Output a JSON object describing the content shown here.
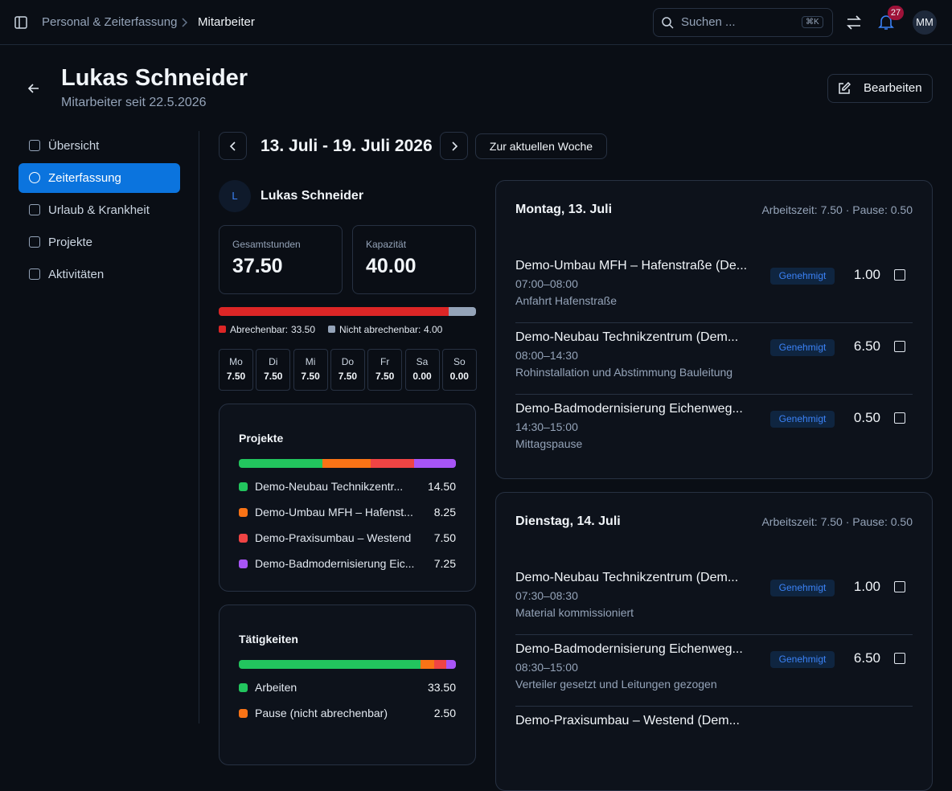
{
  "topbar": {
    "breadcrumb": [
      "Personal & Zeiterfassung",
      "Mitarbeiter"
    ],
    "search": "Suchen ...",
    "shortcut": "⌘K",
    "notifications": "27",
    "avatar": "MM"
  },
  "header": {
    "name": "Lukas Schneider",
    "subtitle": "Mitarbeiter seit 22.5.2026",
    "edit": "Bearbeiten"
  },
  "nav": [
    "Übersicht",
    "Zeiterfassung",
    "Urlaub & Krankheit",
    "Projekte",
    "Aktivitäten"
  ],
  "week": {
    "range": "13. Juli - 19. Juli 2026",
    "today": "Zur aktuellen Woche"
  },
  "employee": {
    "initial": "L",
    "name": "Lukas Schneider"
  },
  "stats": [
    {
      "label": "Gesamtstunden",
      "value": "37.50"
    },
    {
      "label": "Kapazität",
      "value": "40.00"
    }
  ],
  "billing": [
    {
      "name": "Abrechenbar:",
      "value": 33.5,
      "value_label": "33.50",
      "color": "#dc2626"
    },
    {
      "name": "Nicht abrechenbar:",
      "value": 4,
      "value_label": "4.00",
      "color": "#94a3b8"
    }
  ],
  "days": [
    {
      "day": "Mo",
      "hours": "7.50"
    },
    {
      "day": "Di",
      "hours": "7.50"
    },
    {
      "day": "Mi",
      "hours": "7.50"
    },
    {
      "day": "Do",
      "hours": "7.50"
    },
    {
      "day": "Fr",
      "hours": "7.50"
    },
    {
      "day": "Sa",
      "hours": "0.00"
    },
    {
      "day": "So",
      "hours": "0.00"
    }
  ],
  "projects": {
    "title": "Projekte",
    "items": [
      {
        "name": "Demo-Neubau Technikzentr...",
        "value": 14.5,
        "value_label": "14.50",
        "color": "#22c55e"
      },
      {
        "name": "Demo-Umbau MFH – Hafenst...",
        "value": 8.25,
        "value_label": "8.25",
        "color": "#f97316"
      },
      {
        "name": "Demo-Praxisumbau – Westend",
        "value": 7.5,
        "value_label": "7.50",
        "color": "#ef4444"
      },
      {
        "name": "Demo-Badmodernisierung Eic...",
        "value": 7.25,
        "value_label": "7.25",
        "color": "#a855f7"
      }
    ]
  },
  "activities": {
    "title": "Tätigkeiten",
    "items": [
      {
        "name": "Arbeiten",
        "value": 33.5,
        "value_label": "33.50",
        "color": "#22c55e"
      },
      {
        "name": "Pause (nicht abrechenbar)",
        "value": 2.5,
        "value_label": "2.50",
        "color": "#f97316"
      }
    ],
    "other_segments": [
      {
        "value": 2.25,
        "color": "#ef4444"
      },
      {
        "value": 1.75,
        "color": "#a855f7"
      }
    ]
  },
  "day_cards": [
    {
      "title": "Montag, 13. Juli",
      "summary": "Arbeitszeit: 7.50 · Pause: 0.50",
      "entries": [
        {
          "project": "Demo-Umbau MFH – Hafenstraße (De...",
          "time": "07:00–08:00",
          "note": "Anfahrt Hafenstraße",
          "status": "Genehmigt",
          "hours": "1.00"
        },
        {
          "project": "Demo-Neubau Technikzentrum (Dem...",
          "time": "08:00–14:30",
          "note": "Rohinstallation und Abstimmung Bauleitung",
          "status": "Genehmigt",
          "hours": "6.50"
        },
        {
          "project": "Demo-Badmodernisierung Eichenweg...",
          "time": "14:30–15:00",
          "note": "Mittagspause",
          "status": "Genehmigt",
          "hours": "0.50"
        }
      ]
    },
    {
      "title": "Dienstag, 14. Juli",
      "summary": "Arbeitszeit: 7.50 · Pause: 0.50",
      "entries": [
        {
          "project": "Demo-Neubau Technikzentrum (Dem...",
          "time": "07:30–08:30",
          "note": "Material kommissioniert",
          "status": "Genehmigt",
          "hours": "1.00"
        },
        {
          "project": "Demo-Badmodernisierung Eichenweg...",
          "time": "08:30–15:00",
          "note": "Verteiler gesetzt und Leitungen gezogen",
          "status": "Genehmigt",
          "hours": "6.50"
        },
        {
          "project": "Demo-Praxisumbau – Westend (Dem..."
        }
      ]
    }
  ]
}
